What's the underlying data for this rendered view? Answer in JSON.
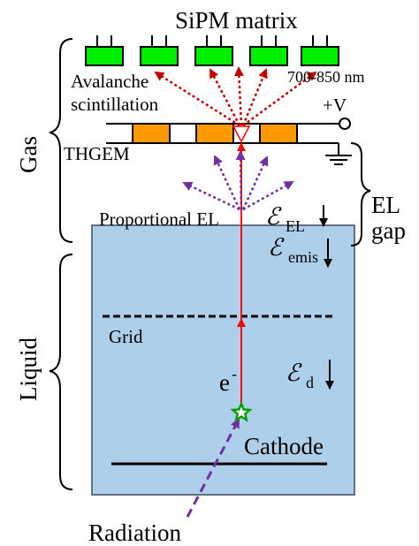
{
  "labels": {
    "sipm_matrix": "SiPM matrix",
    "avalanche_line1": "Avalanche",
    "avalanche_line2": "scintillation",
    "wavelength": "700-850 nm",
    "voltage": "+V",
    "thgem": "THGEM",
    "gas": "Gas",
    "proportional_el": "Proportional EL",
    "el_line1": "EL",
    "el_line2": "gap",
    "liquid": "Liquid",
    "grid": "Grid",
    "electron_base": "e",
    "electron_sup": "-",
    "cathode": "Cathode",
    "radiation": "Radiation",
    "field_symbol": "ℰ",
    "field_el_sub": "EL",
    "field_emis_sub": "emis",
    "field_d_sub": "d"
  },
  "colors": {
    "sipm_fill": "#00ee00",
    "thgem_electrode": "#ff9900",
    "liquid_fill": "#aecfe9",
    "electron_track": "#ff0000",
    "avalanche_arrows": "#c00000",
    "el_arrows": "#7030a0",
    "radiation_track": "#7030a0",
    "interaction_star": "#00a000"
  }
}
